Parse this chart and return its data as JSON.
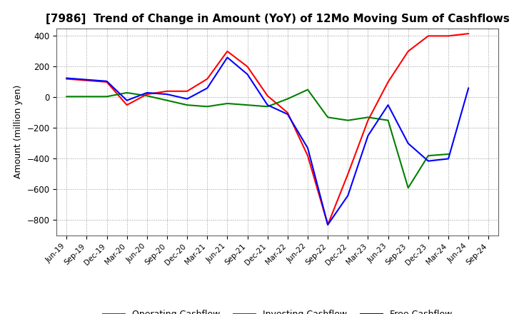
{
  "title": "[7986]  Trend of Change in Amount (YoY) of 12Mo Moving Sum of Cashflows",
  "ylabel": "Amount (million yen)",
  "x_labels": [
    "Jun-19",
    "Sep-19",
    "Dec-19",
    "Mar-20",
    "Jun-20",
    "Sep-20",
    "Dec-20",
    "Mar-21",
    "Jun-21",
    "Sep-21",
    "Dec-21",
    "Mar-22",
    "Jun-22",
    "Sep-22",
    "Dec-22",
    "Mar-23",
    "Jun-23",
    "Sep-23",
    "Dec-23",
    "Mar-24",
    "Jun-24",
    "Sep-24"
  ],
  "operating": [
    120,
    110,
    100,
    -50,
    20,
    40,
    40,
    120,
    300,
    200,
    10,
    -100,
    -380,
    -830,
    -500,
    -150,
    100,
    300,
    400,
    400,
    415,
    null
  ],
  "investing": [
    5,
    5,
    5,
    30,
    10,
    -20,
    -50,
    -60,
    -40,
    -50,
    -60,
    -10,
    50,
    -130,
    -150,
    -130,
    -150,
    -590,
    -380,
    -370,
    null,
    null
  ],
  "free": [
    125,
    115,
    105,
    -20,
    30,
    20,
    -10,
    60,
    260,
    150,
    -50,
    -110,
    -330,
    -830,
    -640,
    -250,
    -50,
    -300,
    -415,
    -400,
    60,
    null
  ],
  "ylim": [
    -900,
    450
  ],
  "yticks": [
    -800,
    -600,
    -400,
    -200,
    0,
    200,
    400
  ],
  "operating_color": "#ff0000",
  "investing_color": "#008000",
  "free_color": "#0000ff",
  "background_color": "#ffffff",
  "grid_color": "#999999",
  "title_fontsize": 11,
  "legend_labels": [
    "Operating Cashflow",
    "Investing Cashflow",
    "Free Cashflow"
  ]
}
